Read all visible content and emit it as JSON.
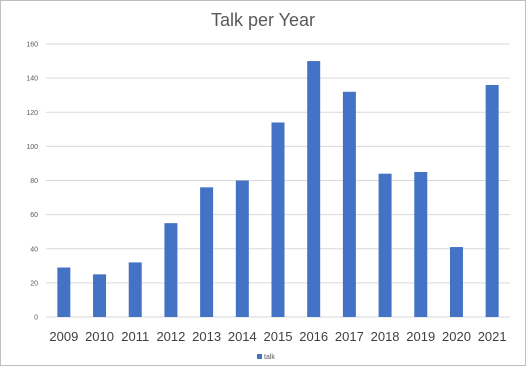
{
  "chart_data": {
    "type": "bar",
    "title": "Talk per Year",
    "categories": [
      "2009",
      "2010",
      "2011",
      "2012",
      "2013",
      "2014",
      "2015",
      "2016",
      "2017",
      "2018",
      "2019",
      "2020",
      "2021"
    ],
    "series": [
      {
        "name": "talk",
        "values": [
          29,
          25,
          32,
          55,
          76,
          80,
          114,
          150,
          132,
          84,
          85,
          41,
          136
        ]
      }
    ],
    "yticks": [
      0,
      20,
      40,
      60,
      80,
      100,
      120,
      140,
      160
    ],
    "ylim": [
      0,
      160
    ],
    "grid": true,
    "legend": "bottom-center",
    "colors": {
      "bar": "#4472C4",
      "grid": "#d9d9d9"
    }
  }
}
